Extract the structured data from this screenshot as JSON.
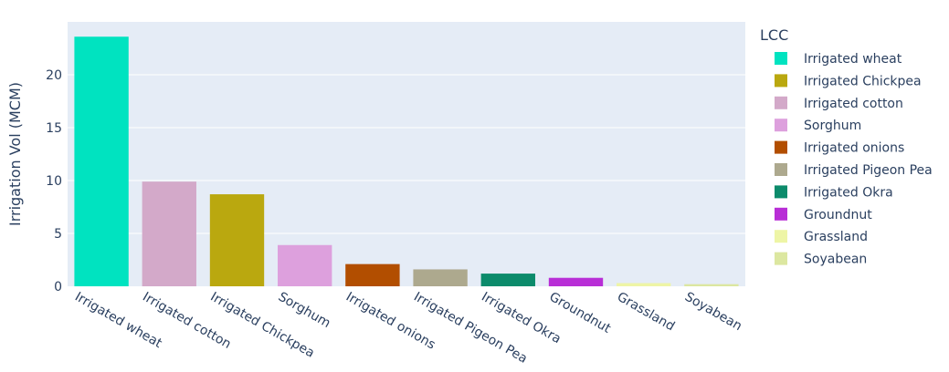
{
  "chart_data": {
    "type": "bar",
    "title": "",
    "xlabel": "",
    "ylabel": "Irrigation Vol (MCM)",
    "ylim": [
      0,
      25
    ],
    "yticks": [
      0,
      5,
      10,
      15,
      20
    ],
    "grid": true,
    "plot_background": "#e5ecf6",
    "legend_title": "LCC",
    "legend_position": "right",
    "categories": [
      "Irrigated wheat",
      "Irrigated cotton",
      "Irrigated Chickpea",
      "Sorghum",
      "Irrigated onions",
      "Irrigated Pigeon Pea",
      "Irrigated Okra",
      "Groundnut",
      "Grassland",
      "Soyabean"
    ],
    "values": [
      23.6,
      9.9,
      8.7,
      3.9,
      2.1,
      1.6,
      1.2,
      0.8,
      0.3,
      0.2
    ],
    "colors": [
      "#00e3c0",
      "#d3a9c9",
      "#baa80f",
      "#dda0dd",
      "#b24e00",
      "#ada98e",
      "#0c8b6b",
      "#b82ed6",
      "#eef5a6",
      "#dce7a0"
    ],
    "legend": [
      {
        "name": "Irrigated wheat",
        "color": "#00e3c0"
      },
      {
        "name": "Irrigated Chickpea",
        "color": "#baa80f"
      },
      {
        "name": "Irrigated cotton",
        "color": "#d3a9c9"
      },
      {
        "name": "Sorghum",
        "color": "#dda0dd"
      },
      {
        "name": "Irrigated onions",
        "color": "#b24e00"
      },
      {
        "name": "Irrigated Pigeon Pea",
        "color": "#ada98e"
      },
      {
        "name": "Irrigated Okra",
        "color": "#0c8b6b"
      },
      {
        "name": "Groundnut",
        "color": "#b82ed6"
      },
      {
        "name": "Grassland",
        "color": "#eef5a6"
      },
      {
        "name": "Soyabean",
        "color": "#dce7a0"
      }
    ]
  }
}
